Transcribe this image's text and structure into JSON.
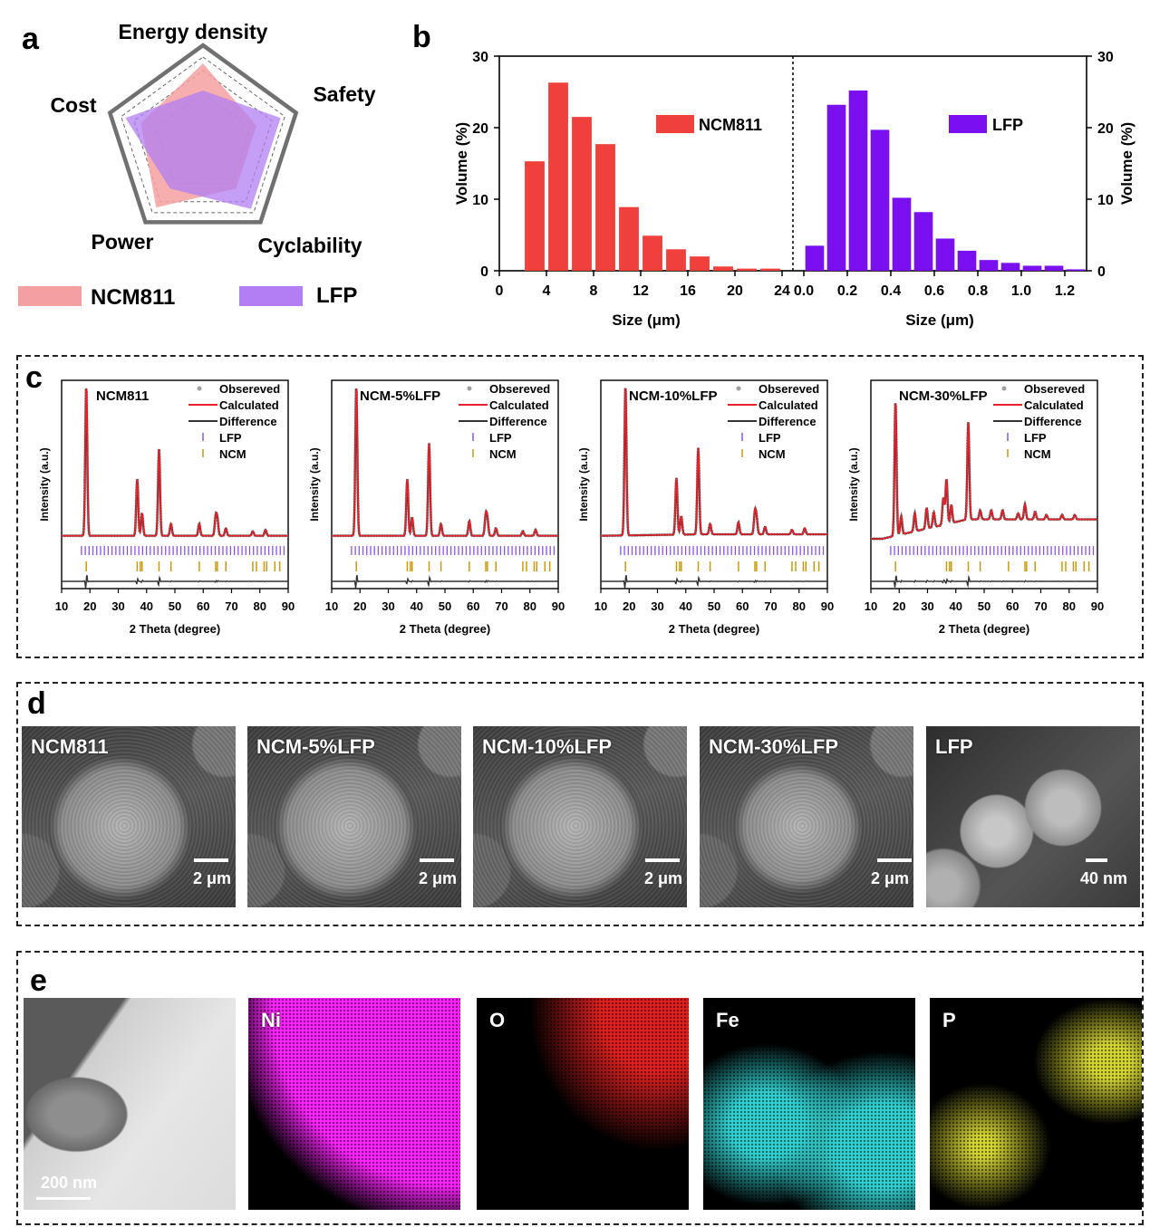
{
  "panel_labels": {
    "a": "a",
    "b": "b",
    "c": "c",
    "d": "d",
    "e": "e"
  },
  "colors": {
    "ncm": "#f0403c",
    "lfp": "#7a10f0",
    "ncm_radar": "#f4a0a0",
    "lfp_radar": "#b27ef2",
    "observed": "#a0a0a0",
    "calculated": "#e8212b",
    "difference": "#333333",
    "lfp_tick": "#8a55e6",
    "ncm_tick": "#c89a10"
  },
  "chart_data": [
    {
      "type": "radar",
      "axes": [
        "Energy density",
        "Safety",
        "Cyclability",
        "Power",
        "Cost"
      ],
      "series": [
        {
          "name": "NCM811",
          "values": [
            0.88,
            0.62,
            0.62,
            0.88,
            0.72
          ]
        },
        {
          "name": "LFP",
          "values": [
            0.58,
            0.9,
            0.9,
            0.62,
            0.9
          ]
        }
      ],
      "legend": [
        "NCM811",
        "LFP"
      ]
    },
    {
      "type": "bar",
      "xlabel": "Size (μm)",
      "ylabel": "Volume (%)",
      "ylim": [
        0,
        30
      ],
      "yticks": [
        0,
        10,
        20,
        30
      ],
      "left": {
        "name": "NCM811",
        "xlim": [
          0,
          24
        ],
        "xticks": [
          0,
          4,
          8,
          12,
          16,
          20,
          24
        ],
        "x": [
          3,
          5,
          7,
          9,
          11,
          13,
          15,
          17,
          19,
          21,
          23
        ],
        "values": [
          15.3,
          26.3,
          21.5,
          17.7,
          8.9,
          4.9,
          3.0,
          2.0,
          0.6,
          0.3,
          0.3
        ]
      },
      "right": {
        "name": "LFP",
        "xlim": [
          0,
          1.3
        ],
        "xticks": [
          "0.0",
          "0.2",
          "0.4",
          "0.6",
          "0.8",
          "1.0",
          "1.2"
        ],
        "x": [
          0.05,
          0.15,
          0.25,
          0.35,
          0.45,
          0.55,
          0.65,
          0.75,
          0.85,
          0.95,
          1.05,
          1.15,
          1.25
        ],
        "values": [
          3.5,
          23.2,
          25.2,
          19.7,
          10.2,
          8.2,
          4.5,
          2.8,
          1.5,
          1.1,
          0.7,
          0.7,
          0.2
        ]
      }
    },
    {
      "type": "line",
      "xlabel": "2 Theta (degree)",
      "ylabel": "Intensity (a.u.)",
      "xlim": [
        10,
        90
      ],
      "xticks": [
        10,
        20,
        30,
        40,
        50,
        60,
        70,
        80,
        90
      ],
      "legend": [
        "Obsereved",
        "Calculated",
        "Difference",
        "LFP",
        "NCM"
      ],
      "panels": [
        {
          "title": "NCM811",
          "peaks": [
            [
              18.7,
              1.0
            ],
            [
              36.7,
              0.38
            ],
            [
              38.4,
              0.15
            ],
            [
              44.4,
              0.58
            ],
            [
              48.6,
              0.08
            ],
            [
              58.6,
              0.08
            ],
            [
              64.4,
              0.12
            ],
            [
              65.0,
              0.1
            ],
            [
              68.0,
              0.05
            ],
            [
              77.5,
              0.03
            ],
            [
              82.0,
              0.04
            ]
          ],
          "background": [
            0.02,
            0.02
          ]
        },
        {
          "title": "NCM-5%LFP",
          "peaks": [
            [
              18.7,
              1.0
            ],
            [
              36.7,
              0.38
            ],
            [
              38.4,
              0.12
            ],
            [
              44.4,
              0.62
            ],
            [
              48.6,
              0.08
            ],
            [
              58.6,
              0.1
            ],
            [
              64.4,
              0.13
            ],
            [
              65.0,
              0.1
            ],
            [
              68.0,
              0.05
            ],
            [
              77.5,
              0.03
            ],
            [
              82.0,
              0.04
            ]
          ],
          "background": [
            0.02,
            0.02
          ]
        },
        {
          "title": "NCM-10%LFP",
          "peaks": [
            [
              18.7,
              1.0
            ],
            [
              36.7,
              0.38
            ],
            [
              38.4,
              0.12
            ],
            [
              44.4,
              0.58
            ],
            [
              48.6,
              0.07
            ],
            [
              58.6,
              0.08
            ],
            [
              64.4,
              0.14
            ],
            [
              65.0,
              0.1
            ],
            [
              68.0,
              0.05
            ],
            [
              77.5,
              0.03
            ],
            [
              82.0,
              0.04
            ]
          ],
          "background": [
            0.02,
            0.03
          ]
        },
        {
          "title": "NCM-30%LFP",
          "peaks": [
            [
              18.7,
              0.9
            ],
            [
              20.7,
              0.12
            ],
            [
              25.5,
              0.12
            ],
            [
              29.7,
              0.14
            ],
            [
              32.2,
              0.1
            ],
            [
              35.6,
              0.18
            ],
            [
              36.7,
              0.3
            ],
            [
              38.4,
              0.12
            ],
            [
              44.4,
              0.65
            ],
            [
              48.6,
              0.06
            ],
            [
              52.5,
              0.06
            ],
            [
              56.5,
              0.06
            ],
            [
              62.0,
              0.04
            ],
            [
              64.4,
              0.1
            ],
            [
              68.0,
              0.05
            ],
            [
              72.0,
              0.03
            ],
            [
              77.5,
              0.03
            ],
            [
              82.0,
              0.03
            ]
          ],
          "background": [
            0.0,
            0.12
          ]
        }
      ]
    }
  ],
  "sem": [
    {
      "title": "NCM811",
      "scale": "2 μm"
    },
    {
      "title": "NCM-5%LFP",
      "scale": "2 μm"
    },
    {
      "title": "NCM-10%LFP",
      "scale": "2 μm"
    },
    {
      "title": "NCM-30%LFP",
      "scale": "2 μm"
    },
    {
      "title": "LFP",
      "scale": "40 nm"
    }
  ],
  "eds": {
    "haadf_scale": "200 nm",
    "maps": [
      {
        "title": "Ni",
        "color": "#ff22ff"
      },
      {
        "title": "O",
        "color": "#e02020"
      },
      {
        "title": "Fe",
        "color": "#30d0d0"
      },
      {
        "title": "P",
        "color": "#d6d630"
      }
    ]
  }
}
